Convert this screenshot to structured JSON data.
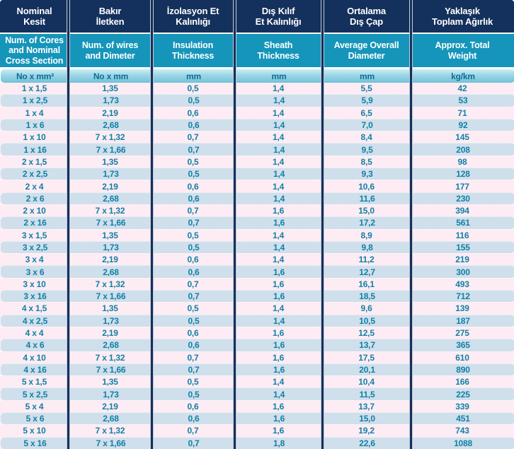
{
  "table": {
    "title_semantic": "Cable specification table",
    "columns": [
      {
        "tr": "Nominal\nKesit",
        "en": "Num. of Cores\nand Nominal\nCross Section",
        "unit": "No x mm²"
      },
      {
        "tr": "Bakır\nİletken",
        "en": "Num. of wires\nand Dimeter",
        "unit": "No x mm"
      },
      {
        "tr": "İzolasyon Et\nKalınlığı",
        "en": "Insulation\nThickness",
        "unit": "mm"
      },
      {
        "tr": "Dış Kılıf\nEt Kalınlığı",
        "en": "Sheath\nThickness",
        "unit": "mm"
      },
      {
        "tr": "Ortalama\nDış Çap",
        "en": "Average Overall\nDiameter",
        "unit": "mm"
      },
      {
        "tr": "Yaklaşık\nToplam Ağırlık",
        "en": "Approx. Total\nWeight",
        "unit": "kg/km"
      }
    ],
    "rows": [
      [
        "1 x 1,5",
        "1,35",
        "0,5",
        "1,4",
        "5,5",
        "42"
      ],
      [
        "1 x 2,5",
        "1,73",
        "0,5",
        "1,4",
        "5,9",
        "53"
      ],
      [
        "1 x 4",
        "2,19",
        "0,6",
        "1,4",
        "6,5",
        "71"
      ],
      [
        "1 x 6",
        "2,68",
        "0,6",
        "1,4",
        "7,0",
        "92"
      ],
      [
        "1 x 10",
        "7 x 1,32",
        "0,7",
        "1,4",
        "8,4",
        "145"
      ],
      [
        "1 x 16",
        "7 x 1,66",
        "0,7",
        "1,4",
        "9,5",
        "208"
      ],
      [
        "2 x 1,5",
        "1,35",
        "0,5",
        "1,4",
        "8,5",
        "98"
      ],
      [
        "2 x 2,5",
        "1,73",
        "0,5",
        "1,4",
        "9,3",
        "128"
      ],
      [
        "2 x 4",
        "2,19",
        "0,6",
        "1,4",
        "10,6",
        "177"
      ],
      [
        "2 x 6",
        "2,68",
        "0,6",
        "1,4",
        "11,6",
        "230"
      ],
      [
        "2 x 10",
        "7 x 1,32",
        "0,7",
        "1,6",
        "15,0",
        "394"
      ],
      [
        "2 x 16",
        "7 x 1,66",
        "0,7",
        "1,6",
        "17,2",
        "561"
      ],
      [
        "3 x 1,5",
        "1,35",
        "0,5",
        "1,4",
        "8,9",
        "116"
      ],
      [
        "3 x 2,5",
        "1,73",
        "0,5",
        "1,4",
        "9,8",
        "155"
      ],
      [
        "3 x 4",
        "2,19",
        "0,6",
        "1,4",
        "11,2",
        "219"
      ],
      [
        "3 x 6",
        "2,68",
        "0,6",
        "1,6",
        "12,7",
        "300"
      ],
      [
        "3 x 10",
        "7 x 1,32",
        "0,7",
        "1,6",
        "16,1",
        "493"
      ],
      [
        "3 x 16",
        "7 x 1,66",
        "0,7",
        "1,6",
        "18,5",
        "712"
      ],
      [
        "4 x 1,5",
        "1,35",
        "0,5",
        "1,4",
        "9,6",
        "139"
      ],
      [
        "4 x 2,5",
        "1,73",
        "0,5",
        "1,4",
        "10,5",
        "187"
      ],
      [
        "4 x 4",
        "2,19",
        "0,6",
        "1,6",
        "12,5",
        "275"
      ],
      [
        "4 x 6",
        "2,68",
        "0,6",
        "1,6",
        "13,7",
        "365"
      ],
      [
        "4 x 10",
        "7 x 1,32",
        "0,7",
        "1,6",
        "17,5",
        "610"
      ],
      [
        "4 x 16",
        "7 x 1,66",
        "0,7",
        "1,6",
        "20,1",
        "890"
      ],
      [
        "5 x 1,5",
        "1,35",
        "0,5",
        "1,4",
        "10,4",
        "166"
      ],
      [
        "5 x 2,5",
        "1,73",
        "0,5",
        "1,4",
        "11,5",
        "225"
      ],
      [
        "5 x 4",
        "2,19",
        "0,6",
        "1,6",
        "13,7",
        "339"
      ],
      [
        "5 x 6",
        "2,68",
        "0,6",
        "1,6",
        "15,0",
        "451"
      ],
      [
        "5 x 10",
        "7 x 1,32",
        "0,7",
        "1,6",
        "19,2",
        "743"
      ],
      [
        "5 x 16",
        "7 x 1,66",
        "0,7",
        "1,8",
        "22,6",
        "1088"
      ]
    ]
  },
  "colors": {
    "header_navy": "#14305c",
    "header_teal": "#1595ba",
    "units_gradient_top": "#cdecf6",
    "units_gradient_bottom": "#74c0d8",
    "units_text": "#0a6f92",
    "row_pink": "#fdecf3",
    "row_blue": "#cfdfeb",
    "data_text": "#1280a6",
    "separator": "#14305c"
  }
}
